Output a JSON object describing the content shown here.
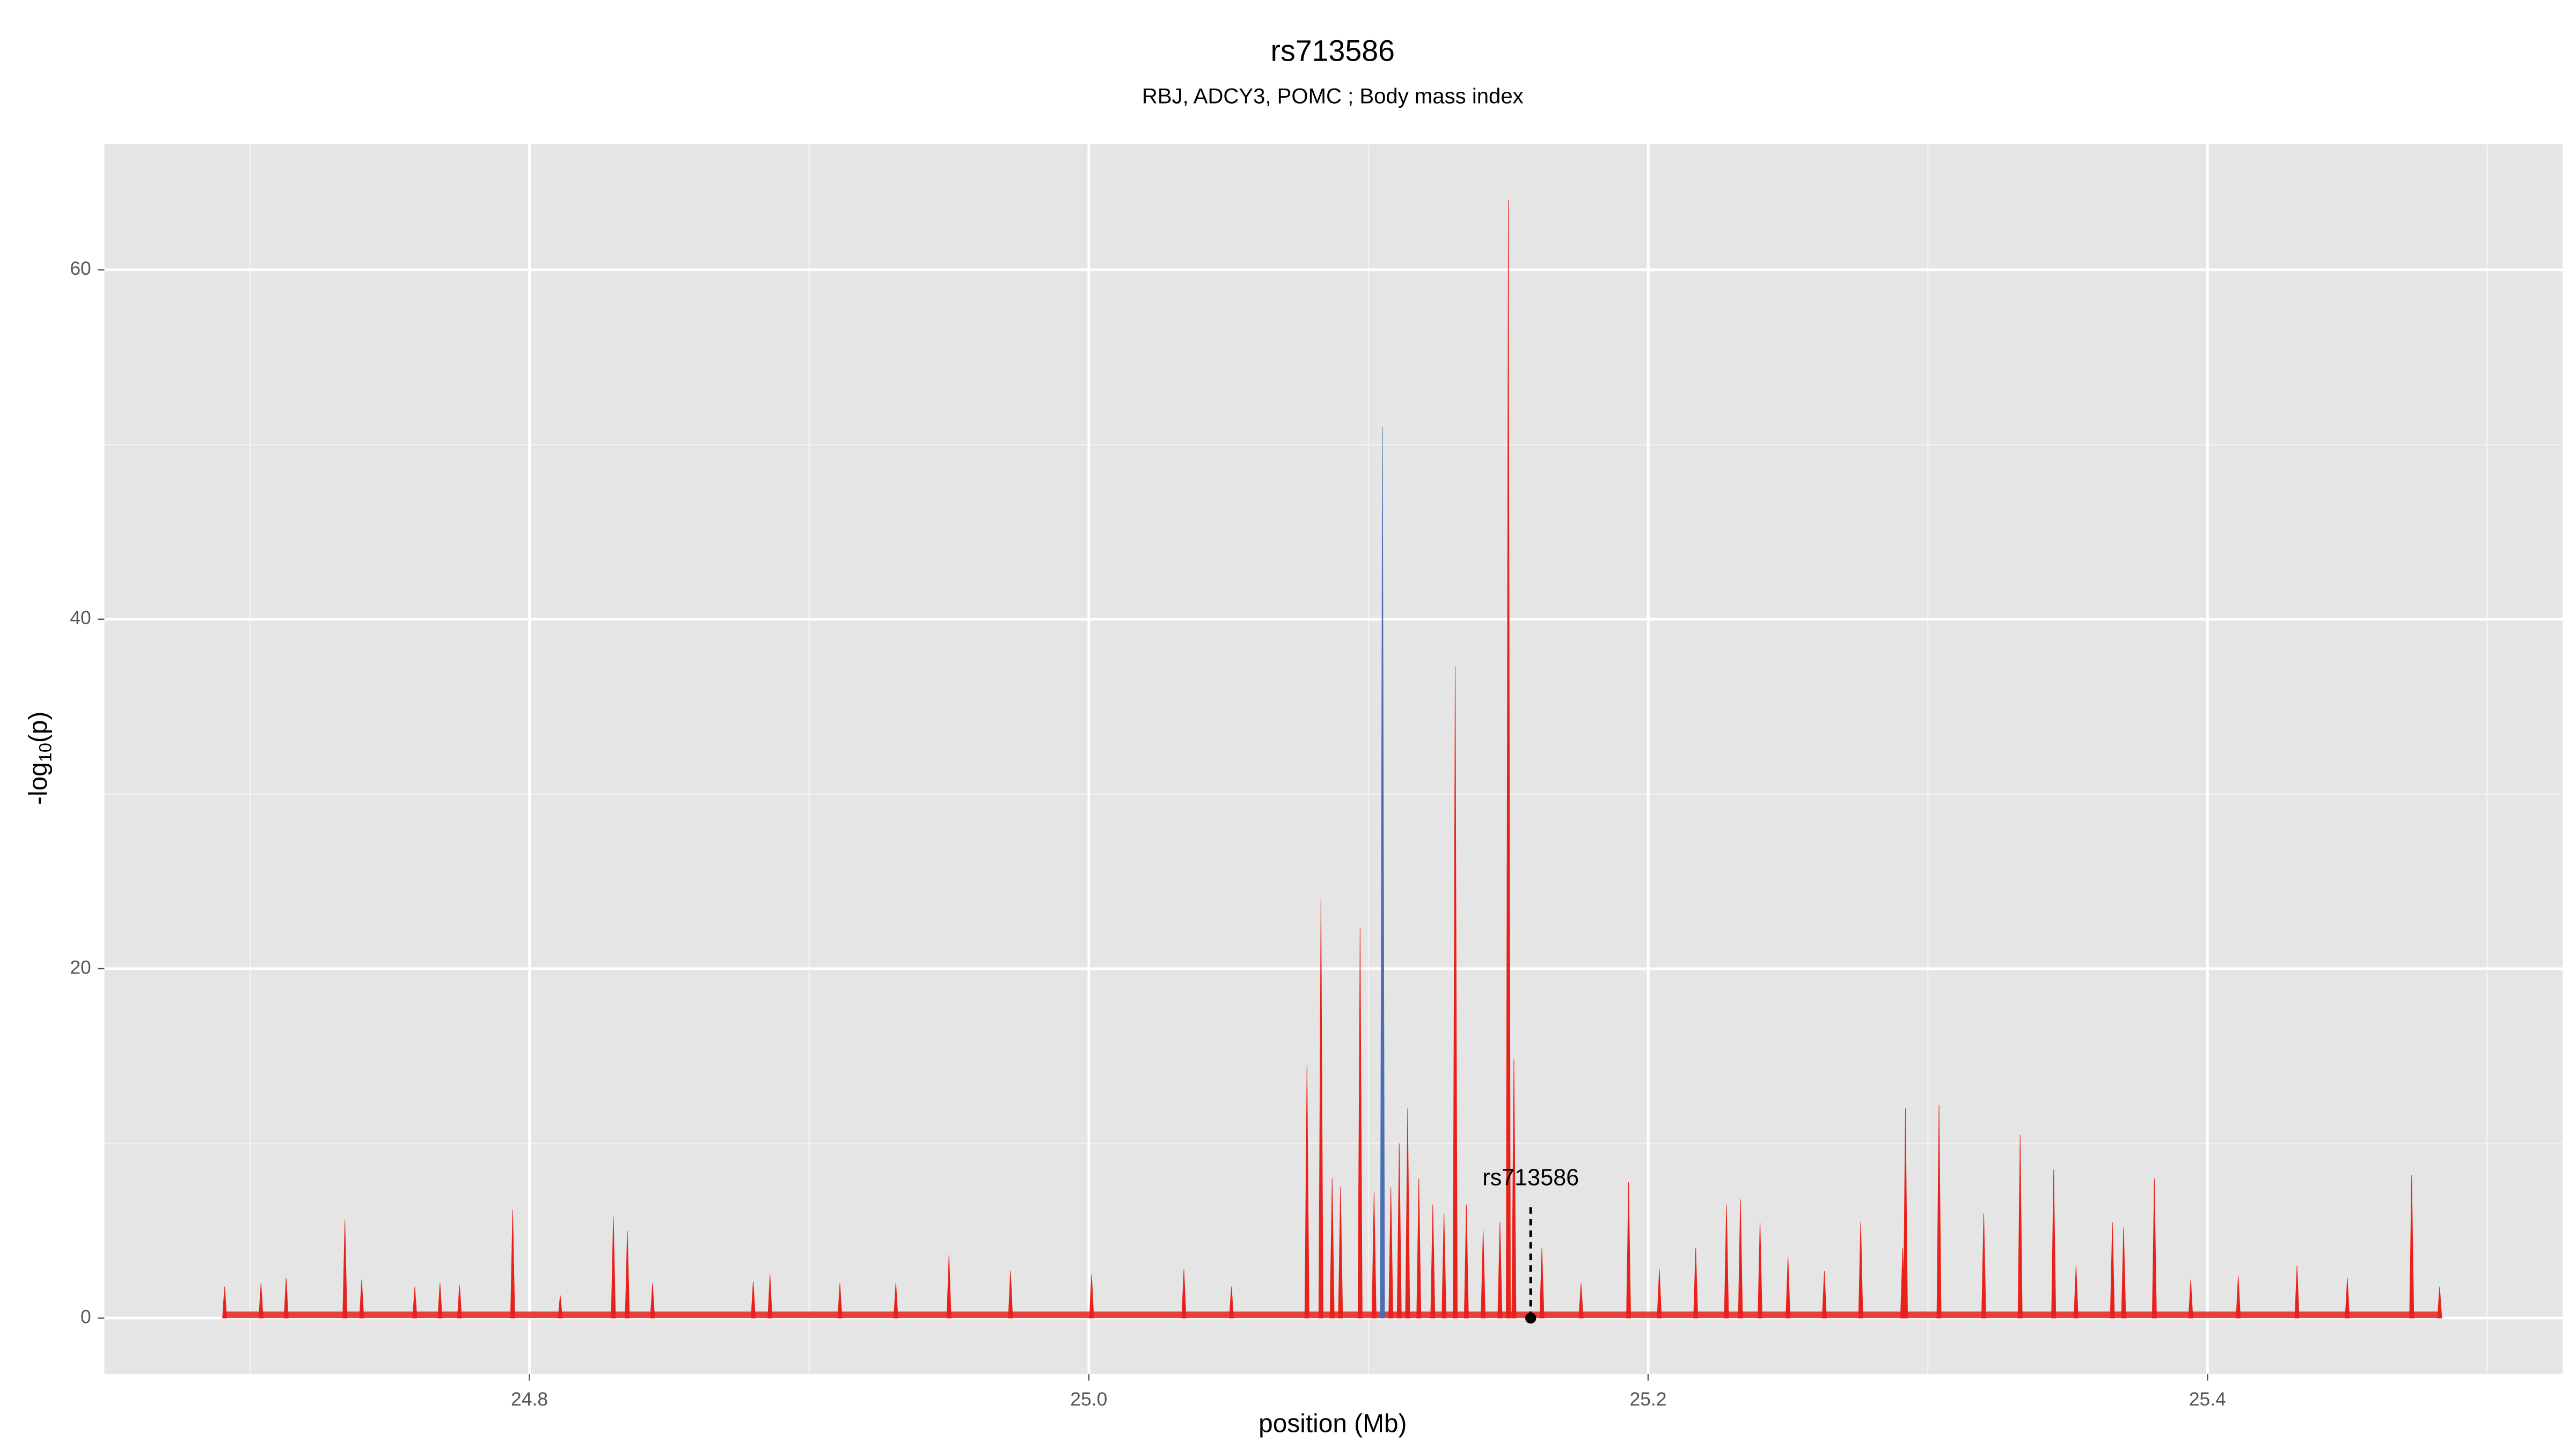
{
  "chart_data": {
    "type": "spike",
    "title": "rs713586",
    "subtitle": "RBJ, ADCY3, POMC ; Body mass index",
    "x_label": "position (Mb)",
    "y_label": [
      "-log",
      "10",
      "(p)"
    ],
    "xlim": [
      24.648,
      25.527
    ],
    "ylim": [
      -3.2,
      67.2
    ],
    "xticks": [
      24.8,
      {
        "value": 25,
        "label": "25.0"
      },
      25.2,
      25.4
    ],
    "yticks": [
      0,
      20,
      40,
      60
    ],
    "xminor": [
      24.7,
      24.9,
      25.1,
      25.3,
      25.5
    ],
    "yminor": [
      10,
      30,
      50
    ],
    "grid": true,
    "color": "#e8221b",
    "x": [
      24.691,
      24.704,
      24.713,
      24.734,
      24.74,
      24.759,
      24.768,
      24.775,
      24.794,
      24.811,
      24.83,
      24.835,
      24.844,
      24.88,
      24.886,
      24.911,
      24.931,
      24.95,
      24.972,
      25.001,
      25.034,
      25.051,
      25.078,
      25.083,
      25.087,
      25.09,
      25.097,
      25.102,
      25.105,
      25.108,
      25.111,
      25.114,
      25.118,
      25.123,
      25.127,
      25.131,
      25.135,
      25.141,
      25.147,
      25.15,
      25.152,
      25.162,
      25.176,
      25.193,
      25.204,
      25.217,
      25.228,
      25.233,
      25.24,
      25.25,
      25.263,
      25.276,
      25.291,
      25.292,
      25.304,
      25.32,
      25.333,
      25.345,
      25.353,
      25.366,
      25.37,
      25.381,
      25.394,
      25.411,
      25.432,
      25.45,
      25.473,
      25.483
    ],
    "values": [
      1.8,
      2.0,
      2.3,
      5.6,
      2.2,
      1.8,
      2.0,
      1.9,
      6.2,
      1.3,
      5.8,
      5.0,
      2.0,
      2.1,
      2.5,
      2.0,
      2.0,
      3.6,
      2.7,
      2.5,
      2.8,
      1.8,
      14.5,
      24,
      8,
      7.5,
      22.3,
      7.2,
      51,
      7.5,
      10,
      12,
      8,
      6.5,
      6,
      37.3,
      6.5,
      5,
      5.5,
      64,
      14.8,
      4,
      2,
      7.8,
      2.8,
      4,
      6.5,
      6.8,
      5.5,
      3.5,
      2.7,
      5.5,
      4,
      12,
      12.2,
      6,
      10.5,
      8.5,
      3,
      5.5,
      5.2,
      8,
      2.2,
      2.4,
      3,
      2.3,
      8.2,
      1.8
    ],
    "highlight": {
      "index": 28,
      "color": "#4a6fb5"
    },
    "annotation": {
      "label": "rs713586",
      "x": 25.158,
      "y": 0
    }
  }
}
